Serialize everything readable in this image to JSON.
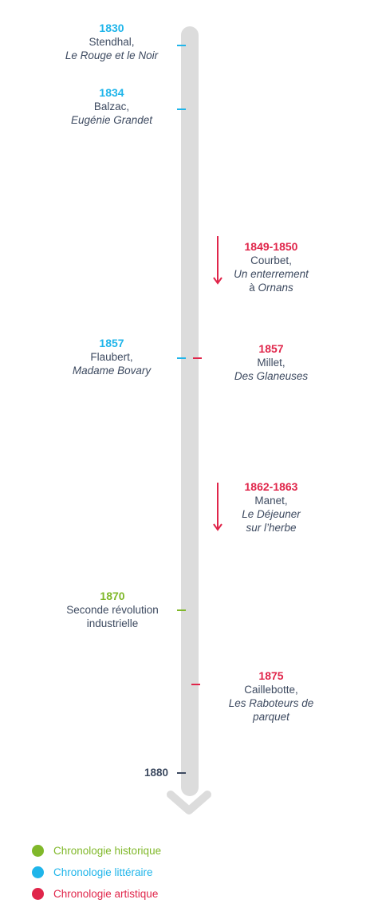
{
  "events": {
    "e1830": {
      "year": "1830",
      "l1": "Stendhal,",
      "l2": "Le Rouge et le Noir"
    },
    "e1834": {
      "year": "1834",
      "l1": "Balzac,",
      "l2": "Eugénie Grandet"
    },
    "e1849": {
      "year": "1849-1850",
      "l1": "Courbet,",
      "l2": "Un enterrement",
      "l3": "à Ornans"
    },
    "e1857a": {
      "year": "1857",
      "l1": "Flaubert,",
      "l2": "Madame Bovary"
    },
    "e1857b": {
      "year": "1857",
      "l1": "Millet,",
      "l2": "Des Glaneuses"
    },
    "e1862": {
      "year": "1862-1863",
      "l1": "Manet,",
      "l2": "Le Déjeuner",
      "l3": "sur l’herbe"
    },
    "e1870": {
      "year": "1870",
      "l1": "Seconde révolution",
      "l2": "industrielle"
    },
    "e1875": {
      "year": "1875",
      "l1": "Caillebotte,",
      "l2": "Les Raboteurs de",
      "l3": "parquet"
    }
  },
  "end_year": "1880",
  "legend": {
    "historique": {
      "label": "Chronologie historique",
      "color": "#80b82a"
    },
    "litteraire": {
      "label": "Chronologie littéraire",
      "color": "#1fb5ea"
    },
    "artistique": {
      "label": "Chronologie artistique",
      "color": "#e0254a"
    }
  },
  "colors": {
    "bar": "#dcdcdc",
    "text": "#3d4a60"
  }
}
